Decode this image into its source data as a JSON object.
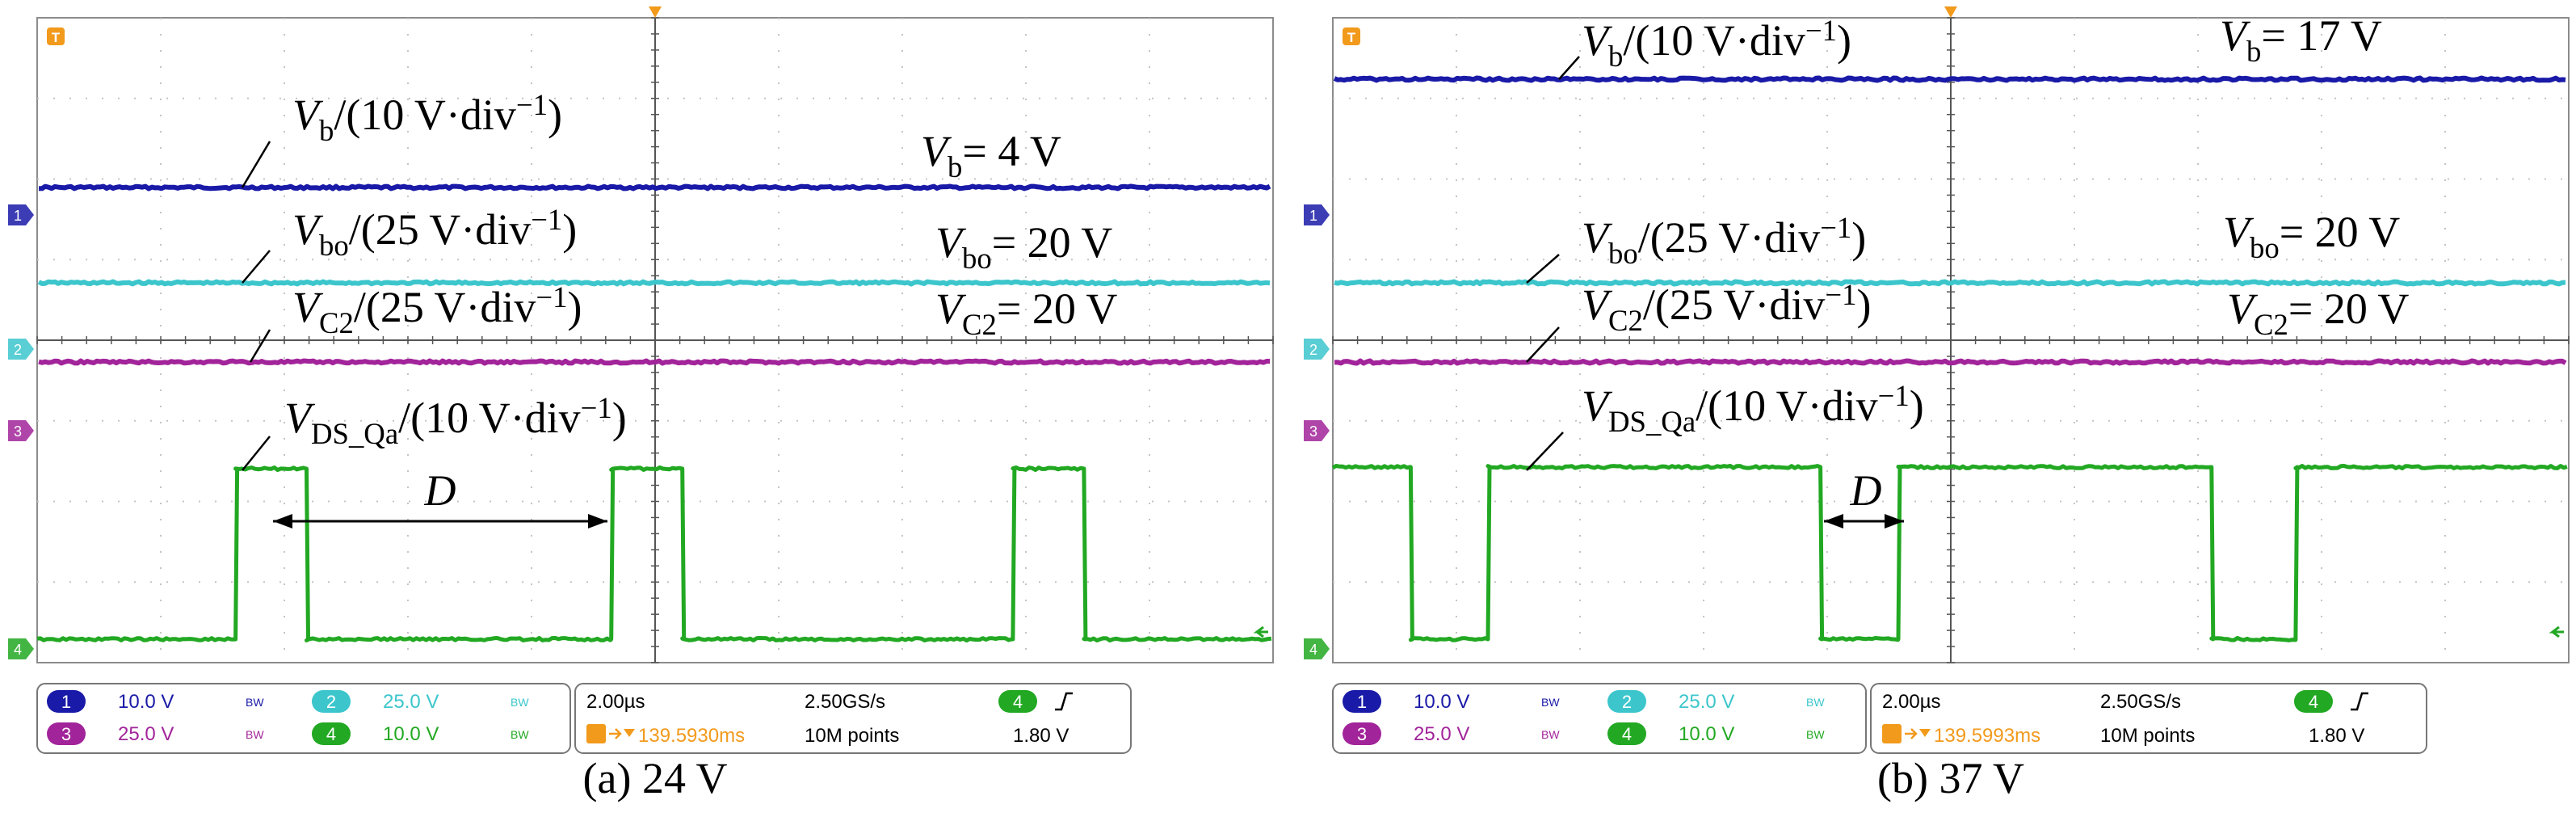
{
  "colors": {
    "ch1": "#1a1aa8",
    "ch2": "#3cc6cc",
    "ch3": "#a2249a",
    "ch4": "#22a822",
    "trigger": "#f29a1c",
    "grid": "#c4c4c4",
    "screen_border": "#8c8c8c"
  },
  "panels": [
    {
      "caption": "(a) 24 V",
      "labels": {
        "vb": {
          "main": "V",
          "sub": "b",
          "rest": "/(10 V·div",
          "sup": "−1",
          "close": ")"
        },
        "vbo": {
          "main": "V",
          "sub": "bo",
          "rest": "/(25 V·div",
          "sup": "−1",
          "close": ")"
        },
        "vc2": {
          "main": "V",
          "sub": "C2",
          "rest": "/(25 V·div",
          "sup": "−1",
          "close": ")"
        },
        "vds": {
          "main": "V",
          "sub": "DS_Qa",
          "rest": "/(10 V·div",
          "sup": "−1",
          "close": ")"
        }
      },
      "values": {
        "vb": {
          "main": "V",
          "sub": "b",
          "rest": "= 4 V"
        },
        "vbo": {
          "main": "V",
          "sub": "bo",
          "rest": "= 20 V"
        },
        "vc2": {
          "main": "V",
          "sub": "C2",
          "rest": "= 20 V"
        }
      },
      "d_label": "D",
      "status": {
        "ch1_num": "1",
        "ch1_scale": "10.0 V",
        "ch2_num": "2",
        "ch2_scale": "25.0 V",
        "ch3_num": "3",
        "ch3_scale": "25.0 V",
        "ch4_num": "4",
        "ch4_scale": "10.0 V",
        "bw": "BW",
        "timebase": "2.00µs",
        "sample_rate": "2.50GS/s",
        "trigger_pos": "139.5930ms",
        "record": "10M points",
        "trig_ch": "4",
        "trig_level": "1.80 V"
      }
    },
    {
      "caption": "(b) 37 V",
      "labels": {
        "vb": {
          "main": "V",
          "sub": "b",
          "rest": "/(10 V·div",
          "sup": "−1",
          "close": ")"
        },
        "vbo": {
          "main": "V",
          "sub": "bo",
          "rest": "/(25 V·div",
          "sup": "−1",
          "close": ")"
        },
        "vc2": {
          "main": "V",
          "sub": "C2",
          "rest": "/(25 V·div",
          "sup": "−1",
          "close": ")"
        },
        "vds": {
          "main": "V",
          "sub": "DS_Qa",
          "rest": "/(10 V·div",
          "sup": "−1",
          "close": ")"
        }
      },
      "values": {
        "vb": {
          "main": "V",
          "sub": "b",
          "rest": "= 17 V"
        },
        "vbo": {
          "main": "V",
          "sub": "bo",
          "rest": "= 20 V"
        },
        "vc2": {
          "main": "V",
          "sub": "C2",
          "rest": "= 20 V"
        }
      },
      "d_label": "D",
      "status": {
        "ch1_num": "1",
        "ch1_scale": "10.0 V",
        "ch2_num": "2",
        "ch2_scale": "25.0 V",
        "ch3_num": "3",
        "ch3_scale": "25.0 V",
        "ch4_num": "4",
        "ch4_scale": "10.0 V",
        "bw": "BW",
        "timebase": "2.00µs",
        "sample_rate": "2.50GS/s",
        "trigger_pos": "139.5993ms",
        "record": "10M points",
        "trig_ch": "4",
        "trig_level": "1.80 V"
      }
    }
  ],
  "chart_data": [
    {
      "type": "line",
      "title": "(a) 24 V",
      "x_unit": "µs",
      "xlim": [
        -10,
        10
      ],
      "time_per_div": 2.0,
      "series": [
        {
          "name": "Vb",
          "channel": 1,
          "volts_per_div": 10,
          "level_v": 4,
          "x": [
            -10,
            10
          ],
          "y": [
            4,
            4
          ]
        },
        {
          "name": "Vbo",
          "channel": 2,
          "volts_per_div": 25,
          "level_v": 20,
          "x": [
            -10,
            10
          ],
          "y": [
            20,
            20
          ]
        },
        {
          "name": "VC2",
          "channel": 3,
          "volts_per_div": 25,
          "level_v": 20,
          "x": [
            -10,
            10
          ],
          "y": [
            20,
            20
          ]
        },
        {
          "name": "VDS_Qa",
          "channel": 4,
          "volts_per_div": 10,
          "x": [
            -10,
            -6.79,
            -6.79,
            -5.64,
            -5.64,
            -0.71,
            -0.71,
            0.44,
            0.44,
            5.79,
            5.79,
            6.94,
            6.94,
            10
          ],
          "y": [
            0,
            0,
            21,
            21,
            0,
            0,
            21,
            21,
            0,
            0,
            21,
            21,
            0,
            0
          ]
        }
      ]
    },
    {
      "type": "line",
      "title": "(b) 37 V",
      "x_unit": "µs",
      "xlim": [
        -10,
        10
      ],
      "time_per_div": 2.0,
      "series": [
        {
          "name": "Vb",
          "channel": 1,
          "volts_per_div": 10,
          "level_v": 17,
          "x": [
            -10,
            10
          ],
          "y": [
            17,
            17
          ]
        },
        {
          "name": "Vbo",
          "channel": 2,
          "volts_per_div": 25,
          "level_v": 20,
          "x": [
            -10,
            10
          ],
          "y": [
            20,
            20
          ]
        },
        {
          "name": "VC2",
          "channel": 3,
          "volts_per_div": 25,
          "level_v": 20,
          "x": [
            -10,
            10
          ],
          "y": [
            20,
            20
          ]
        },
        {
          "name": "VDS_Qa",
          "channel": 4,
          "volts_per_div": 10,
          "x": [
            -10,
            -8.74,
            -8.74,
            -7.49,
            -7.49,
            -2.11,
            -2.11,
            -0.85,
            -0.85,
            4.22,
            4.22,
            5.58,
            5.58,
            10
          ],
          "y": [
            21,
            21,
            0,
            0,
            21,
            21,
            0,
            0,
            21,
            21,
            0,
            0,
            21,
            21
          ]
        }
      ]
    }
  ]
}
